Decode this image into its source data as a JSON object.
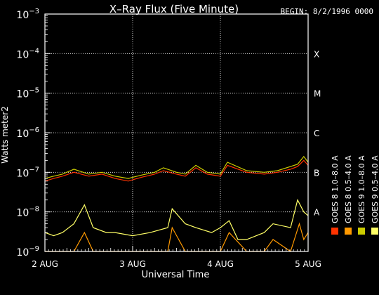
{
  "chart_data": {
    "type": "line",
    "title": "X–Ray Flux (Five Minute)",
    "begin_label": "BEGIN: 8/2/1996 0000",
    "xlabel": "Universal Time",
    "ylabel": "Watts meter2",
    "y_scale": "log",
    "ylim": [
      1e-09,
      0.001
    ],
    "y_ticks": [
      {
        "base": "10",
        "exp": "−3"
      },
      {
        "base": "10",
        "exp": "−4"
      },
      {
        "base": "10",
        "exp": "−5"
      },
      {
        "base": "10",
        "exp": "−6"
      },
      {
        "base": "10",
        "exp": "−7"
      },
      {
        "base": "10",
        "exp": "−8"
      },
      {
        "base": "10",
        "exp": "−9"
      }
    ],
    "x_ticks": [
      "2 AUG",
      "3 AUG",
      "4 AUG",
      "5 AUG"
    ],
    "xlim_days": [
      0,
      3
    ],
    "flare_classes": [
      {
        "label": "X",
        "flux": 0.0001
      },
      {
        "label": "M",
        "flux": 1e-05
      },
      {
        "label": "C",
        "flux": 1e-06
      },
      {
        "label": "B",
        "flux": 1e-07
      },
      {
        "label": "A",
        "flux": 1e-08
      }
    ],
    "grid": "dotted",
    "legend_position": "right, vertical",
    "series": [
      {
        "name": "GOES 8 1.0–8.0 A",
        "color": "#ff3300",
        "x_days": [
          0,
          0.1,
          0.2,
          0.33,
          0.5,
          0.65,
          0.8,
          0.95,
          1.0,
          1.1,
          1.25,
          1.35,
          1.5,
          1.6,
          1.72,
          1.85,
          2.0,
          2.08,
          2.3,
          2.5,
          2.65,
          2.8,
          2.88,
          2.95,
          3.0
        ],
        "values": [
          6e-08,
          7e-08,
          8e-08,
          1e-07,
          8e-08,
          9e-08,
          7e-08,
          6e-08,
          6.5e-08,
          7.5e-08,
          9e-08,
          1.1e-07,
          9e-08,
          8e-08,
          1.3e-07,
          9e-08,
          8e-08,
          1.5e-07,
          1e-07,
          9e-08,
          1e-07,
          1.2e-07,
          1.4e-07,
          2e-07,
          1.5e-07
        ]
      },
      {
        "name": "GOES 8 0.5–4.0 A",
        "color": "#ff9900",
        "x_days": [
          0,
          0.33,
          0.45,
          0.55,
          0.7,
          0.8,
          1.0,
          1.2,
          1.4,
          1.45,
          1.6,
          1.72,
          1.9,
          2.0,
          2.1,
          2.3,
          2.5,
          2.6,
          2.8,
          2.9,
          2.95,
          3.0
        ],
        "values": [
          1e-09,
          1e-09,
          3e-09,
          1e-09,
          1e-09,
          1e-09,
          1e-09,
          1e-09,
          1e-09,
          4e-09,
          1e-09,
          1e-09,
          1e-09,
          1e-09,
          3e-09,
          1e-09,
          1e-09,
          2e-09,
          1e-09,
          5e-09,
          2e-09,
          3e-09
        ]
      },
      {
        "name": "GOES 9 1.0–8.0 A",
        "color": "#cccc00",
        "x_days": [
          0,
          0.1,
          0.2,
          0.33,
          0.5,
          0.65,
          0.8,
          0.95,
          1.0,
          1.1,
          1.25,
          1.35,
          1.5,
          1.6,
          1.72,
          1.85,
          2.0,
          2.08,
          2.3,
          2.5,
          2.65,
          2.8,
          2.88,
          2.95,
          3.0
        ],
        "values": [
          7e-08,
          8e-08,
          9e-08,
          1.2e-07,
          9e-08,
          1e-07,
          8e-08,
          7e-08,
          7.5e-08,
          8.5e-08,
          1e-07,
          1.3e-07,
          1e-07,
          9e-08,
          1.5e-07,
          1e-07,
          9e-08,
          1.8e-07,
          1.1e-07,
          1e-07,
          1.1e-07,
          1.4e-07,
          1.6e-07,
          2.5e-07,
          1.8e-07
        ]
      },
      {
        "name": "GOES 9 0.5–4.0 A",
        "color": "#ffff66",
        "x_days": [
          0,
          0.1,
          0.2,
          0.33,
          0.45,
          0.55,
          0.7,
          0.8,
          1.0,
          1.2,
          1.4,
          1.45,
          1.6,
          1.72,
          1.9,
          2.0,
          2.1,
          2.2,
          2.3,
          2.5,
          2.6,
          2.8,
          2.88,
          2.95,
          3.0
        ],
        "values": [
          3e-09,
          2.5e-09,
          3e-09,
          5e-09,
          1.5e-08,
          4e-09,
          3e-09,
          3e-09,
          2.5e-09,
          3e-09,
          4e-09,
          1.2e-08,
          5e-09,
          4e-09,
          3e-09,
          4e-09,
          6e-09,
          2e-09,
          2e-09,
          3e-09,
          5e-09,
          4e-09,
          2e-08,
          1e-08,
          8e-09
        ]
      }
    ]
  }
}
